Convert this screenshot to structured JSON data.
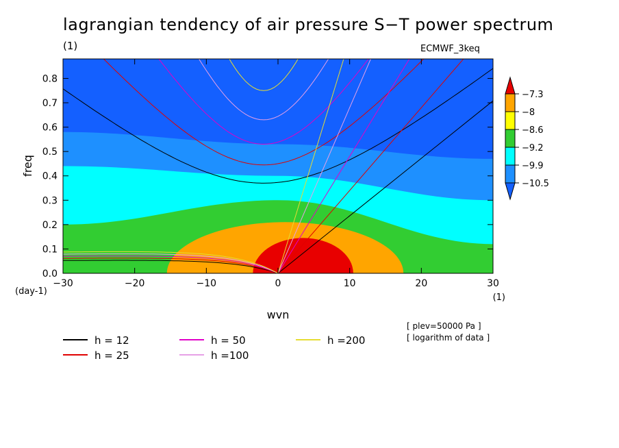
{
  "title": "lagrangian tendency of air pressure S−T power spectrum",
  "subtitle": "(1)",
  "model_label": "ECMWF_3keq",
  "notes": [
    "[ plev=50000 Pa ]",
    "[ logarithm of data ]"
  ],
  "chart_data": {
    "type": "heatmap",
    "xlabel": "wvn",
    "ylabel": "freq",
    "x_unit_label": "(1)",
    "y_unit_label": "(day-1)",
    "xlim": [
      -30,
      30
    ],
    "ylim": [
      0,
      0.88
    ],
    "x_ticks": [
      "−30",
      "−20",
      "−10",
      "0",
      "10",
      "20",
      "30"
    ],
    "x_tick_values": [
      -30,
      -20,
      -10,
      0,
      10,
      20,
      30
    ],
    "y_ticks": [
      "0.0",
      "0.1",
      "0.2",
      "0.3",
      "0.4",
      "0.5",
      "0.6",
      "0.7",
      "0.8"
    ],
    "y_tick_values": [
      0,
      0.1,
      0.2,
      0.3,
      0.4,
      0.5,
      0.6,
      0.7,
      0.8
    ],
    "colorbar": {
      "levels": [
        "−7.3",
        "−8",
        "−8.6",
        "−9.2",
        "−9.9",
        "−10.5"
      ],
      "colors": [
        "#e80000",
        "#ffa500",
        "#ffff00",
        "#32cd32",
        "#00ffff",
        "#1e90ff",
        "#1460ff"
      ]
    },
    "contour_regions": {
      "bands_top_freq": [
        {
          "color": "#1460ff",
          "x": [
            -30,
            0,
            30
          ],
          "y_lower": [
            0.77,
            0.74,
            0.75
          ]
        },
        {
          "color": "#1e90ff",
          "x": [
            -30,
            0,
            30
          ],
          "y_lower": [
            0.58,
            0.53,
            0.47
          ]
        },
        {
          "color": "#00ffff",
          "x": [
            -30,
            0,
            30
          ],
          "y_lower": [
            0.44,
            0.4,
            0.3
          ]
        },
        {
          "color": "#32cd32",
          "x": [
            -30,
            0,
            30
          ],
          "y_lower": [
            0.2,
            0.3,
            0.12
          ]
        },
        {
          "color": "#ffff00",
          "x": [
            -30,
            0,
            30
          ],
          "y_lower": [
            0,
            0,
            0
          ]
        }
      ],
      "orange_blob": {
        "center_wvn": 1,
        "half_width_wvn": 16.5,
        "max_freq": 0.21
      },
      "red_blob": {
        "center_wvn": 3.5,
        "half_width_wvn": 7,
        "max_freq": 0.145
      }
    },
    "dispersion_curves": [
      {
        "name": "h = 12",
        "color": "#000000",
        "kelvin_slope": 0.0236,
        "min_freq": 0.37,
        "low_branch_freq": 0.06
      },
      {
        "name": "h = 25",
        "color": "#e00000",
        "kelvin_slope": 0.034,
        "min_freq": 0.445,
        "low_branch_freq": 0.07
      },
      {
        "name": "h = 50",
        "color": "#e000c8",
        "kelvin_slope": 0.048,
        "min_freq": 0.53,
        "low_branch_freq": 0.08
      },
      {
        "name": "h =100",
        "color": "#e6a0e6",
        "kelvin_slope": 0.068,
        "min_freq": 0.63,
        "low_branch_freq": 0.09
      },
      {
        "name": "h =200",
        "color": "#e6dc32",
        "kelvin_slope": 0.096,
        "min_freq": 0.75,
        "low_branch_freq": 0.1
      }
    ]
  }
}
